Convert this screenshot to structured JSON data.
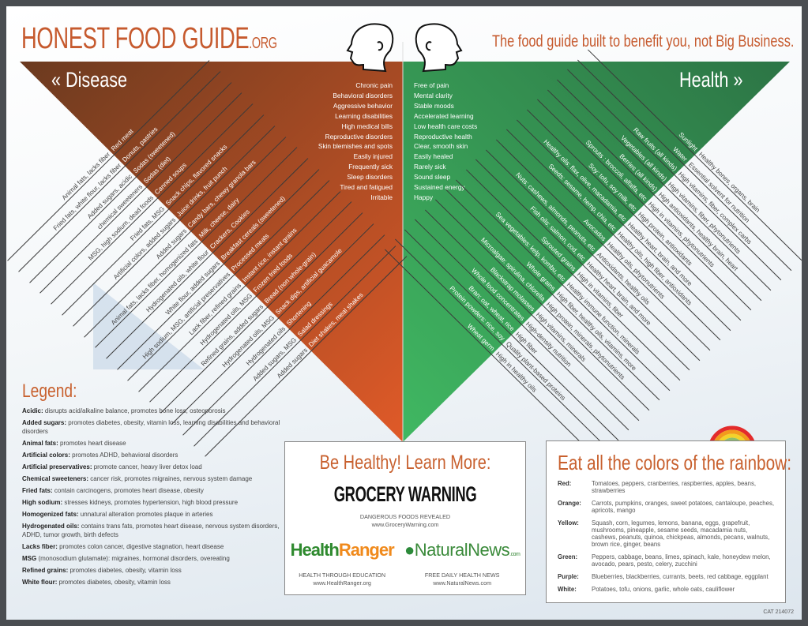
{
  "header": {
    "title": "HONEST FOOD GUIDE",
    "title_suffix": ".ORG",
    "tagline": "The food guide built to benefit you, not Big Business."
  },
  "colors": {
    "disease_dark": "#6b3a1f",
    "disease_light": "#dd5a2a",
    "health_dark": "#2f7b45",
    "health_light": "#3fb560",
    "accent": "#c8602e"
  },
  "disease": {
    "label": "« Disease",
    "symptoms": [
      "Chronic pain",
      "Behavioral disorders",
      "Aggressive behavior",
      "Learning disabilities",
      "High medical bills",
      "Reproductive disorders",
      "Skin blemishes and spots",
      "Easily injured",
      "Frequently sick",
      "Sleep disorders",
      "Tired and fatigued",
      "Irritable"
    ],
    "foods": [
      {
        "food": "Red meat",
        "reason": "Animal fats, lacks fiber"
      },
      {
        "food": "Donuts, pastries",
        "reason": "Fried fats, white flour, lacks fiber"
      },
      {
        "food": "Sodas (sweetened)",
        "reason": "Added sugars, acidic"
      },
      {
        "food": "Sodas (diet)",
        "reason": "chemical sweeteners"
      },
      {
        "food": "Canned soups",
        "reason": "MSG, high sodium, dead foods"
      },
      {
        "food": "Snack chips, flavored snacks",
        "reason": "Fried fats, MSG"
      },
      {
        "food": "Juice drinks, fruit punch",
        "reason": "Artificial colors, added sugars"
      },
      {
        "food": "Candy bars, chewy granola bars",
        "reason": "Added sugars"
      },
      {
        "food": "Milk, cheese, dairy",
        "reason": "Animal fats, lacks fiber, homogenized fats"
      },
      {
        "food": "Crackers, Cookies",
        "reason": "Hydrogenated oils, white flour"
      },
      {
        "food": "Breakfast cereals (sweetened)",
        "reason": "White flour, added sugars"
      },
      {
        "food": "Processed meats",
        "reason": "High sodium, MSG, artificial preservatives"
      },
      {
        "food": "Instant rice, instant grains",
        "reason": "Lack fiber, refined grains"
      },
      {
        "food": "Frozen fried foods",
        "reason": "Hydrogenated oils, MSG"
      },
      {
        "food": "Bread (non whole-grain)",
        "reason": "Refined grains, added sugars"
      },
      {
        "food": "Snack dips, artificial guacamole",
        "reason": "Hydrogenated oils, MSG"
      },
      {
        "food": "Shortening",
        "reason": "Hydrogenated oils"
      },
      {
        "food": "Salad dressings",
        "reason": "Added sugars, MSG"
      },
      {
        "food": "Diet shakes, meal shakes",
        "reason": "Added sugars"
      }
    ]
  },
  "health": {
    "label": "Health »",
    "benefits_summary": [
      "Free of pain",
      "Mental clarity",
      "Stable moods",
      "Accelerated learning",
      "Low health care costs",
      "Reproductive health",
      "Clear, smooth skin",
      "Easily healed",
      "Rarely sick",
      "Sound sleep",
      "Sustained energy",
      "Happy"
    ],
    "foods": [
      {
        "food": "Sunlight",
        "benefit": "Healthy bones, organs, brain"
      },
      {
        "food": "Water",
        "benefit": "Essential solvent for nutrition"
      },
      {
        "food": "Raw fruits (all kinds)",
        "benefit": "High vitamins, fiber, complex carbs"
      },
      {
        "food": "Vegetables (all kinds)",
        "benefit": "High vitamins, fiber, phytonutrients"
      },
      {
        "food": "Berries (all kinds)",
        "benefit": "High antioxidants, healthy brain, heart"
      },
      {
        "food": "Sprouts : broccoli, alfalfa, etc",
        "benefit": "High in vitamins, phytonutrients"
      },
      {
        "food": "Soy: tofu, soy milk, etc",
        "benefit": "High protein, antioxidants"
      },
      {
        "food": "Healthy oils: flax, olive, macadamia, etc",
        "benefit": "Healthy heart, brain, and more"
      },
      {
        "food": "Seeds: sesame, hemp, chia, etc",
        "benefit": "Healthy oils, high fiber, antioxidants"
      },
      {
        "food": "Avocados",
        "benefit": "Healthy oils, phytonutrients"
      },
      {
        "food": "Nuts: cashews, almonds, peanuts, etc",
        "benefit": "Antioxidants, healthy oils"
      },
      {
        "food": "Fish oils: salmon, cod, etc",
        "benefit": "Healthy heart, brain, and more"
      },
      {
        "food": "Sprouted grains",
        "benefit": "High in vitamins, fiber"
      },
      {
        "food": "Sea vegetables: kelp, kombu, etc",
        "benefit": "Healthy immune function, minerals"
      },
      {
        "food": "Whole grains",
        "benefit": "High fiber, healthy oils, vitamins, more"
      },
      {
        "food": "Microalgae: spirulina, chlorella",
        "benefit": "High protein, minerals, phytonutrients"
      },
      {
        "food": "Blackstrap molasses",
        "benefit": "High vitamins, minerals"
      },
      {
        "food": "Whole food concentrates",
        "benefit": "High-density nutrition"
      },
      {
        "food": "Bran: oat, wheat, rice",
        "benefit": "High fiber"
      },
      {
        "food": "Protein powders: rice, soy",
        "benefit": "Quality plant-based proteins"
      },
      {
        "food": "Wheat germ",
        "benefit": "High in healthy oils"
      }
    ]
  },
  "legend": {
    "title": "Legend:",
    "items": [
      {
        "term": "Acidic:",
        "desc": "disrupts acid/alkaline balance, promotes bone loss, osteoporosis"
      },
      {
        "term": "Added sugars:",
        "desc": "promotes diabetes, obesity, vitamin loss, learning disabilities and behavioral disorders"
      },
      {
        "term": "Animal fats:",
        "desc": "promotes heart disease"
      },
      {
        "term": "Artificial colors:",
        "desc": "promotes ADHD, behavioral disorders"
      },
      {
        "term": "Artificial preservatives:",
        "desc": "promote cancer, heavy liver detox load"
      },
      {
        "term": "Chemical sweeteners:",
        "desc": "cancer risk, promotes migraines, nervous system damage"
      },
      {
        "term": "Fried fats:",
        "desc": "contain carcinogens, promotes heart disease, obesity"
      },
      {
        "term": "High sodium:",
        "desc": "stresses kidneys, promotes hypertension, high blood pressure"
      },
      {
        "term": "Homogenized fats:",
        "desc": "unnatural alteration promotes plaque in arteries"
      },
      {
        "term": "Hydrogenated oils:",
        "desc": "contains trans fats, promotes heart disease, nervous system disorders, ADHD, tumor growth, birth defects"
      },
      {
        "term": "Lacks fiber:",
        "desc": "promotes colon cancer, digestive stagnation, heart disease"
      },
      {
        "term": "MSG",
        "desc": "(monosodium glutamate): migraines, hormonal disorders, overeating"
      },
      {
        "term": "Refined grains:",
        "desc": "promotes diabetes, obesity, vitamin loss"
      },
      {
        "term": "White flour:",
        "desc": "promotes diabetes, obesity, vitamin loss"
      }
    ]
  },
  "learn_more": {
    "title": "Be Healthy! Learn More:",
    "grocery": {
      "name": "GROCERY WARNING",
      "tagline": "DANGEROUS FOODS REVEALED",
      "url": "www.GroceryWarning.com"
    },
    "health_ranger": {
      "name_a": "Health",
      "name_b": "Ranger",
      "tagline": "HEALTH THROUGH EDUCATION",
      "url": "www.HealthRanger.org"
    },
    "natural_news": {
      "name": "NaturalNews",
      "suffix": ".com",
      "tagline": "FREE DAILY HEALTH NEWS",
      "url": "www.NaturalNews.com"
    }
  },
  "rainbow": {
    "title": "Eat all the colors of the rainbow:",
    "rows": [
      {
        "color": "Red:",
        "foods": "Tomatoes, peppers, cranberries, raspberries, apples, beans, strawberries"
      },
      {
        "color": "Orange:",
        "foods": "Carrots, pumpkins, oranges, sweet potatoes, cantaloupe, peaches, apricots, mango"
      },
      {
        "color": "Yellow:",
        "foods": "Squash, corn, legumes, lemons, banana, eggs, grapefruit, mushrooms, pineapple, sesame seeds, macadamia nuts, cashews, peanuts, quinoa, chickpeas, almonds, pecans, walnuts, brown rice, ginger, beans"
      },
      {
        "color": "Green:",
        "foods": "Peppers, cabbage, beans, limes, spinach, kale, honeydew melon, avocado, pears, pesto, celery, zucchini"
      },
      {
        "color": "Purple:",
        "foods": "Blueberries, blackberries, currants, beets, red cabbage, eggplant"
      },
      {
        "color": "White:",
        "foods": "Potatoes, tofu, onions, garlic, whole oats, cauliflower"
      }
    ]
  },
  "catalog": "CAT 214072"
}
